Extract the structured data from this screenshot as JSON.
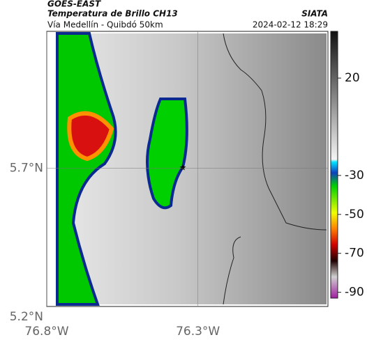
{
  "header": {
    "source": "GOES-EAST",
    "product": "Temperatura de Brillo CH13",
    "route": "Vía Medellín - Quibdó 50km",
    "agency": "SIATA",
    "datetime": "2024-02-12 18:29"
  },
  "map": {
    "xlim": [
      -76.8,
      -75.87
    ],
    "ylim": [
      5.2,
      6.16
    ],
    "xticks": [
      {
        "value": -76.8,
        "label": "76.8°W"
      },
      {
        "value": -76.3,
        "label": "76.3°W"
      }
    ],
    "yticks": [
      {
        "value": 5.7,
        "label": "5.7°N"
      },
      {
        "value": 5.2,
        "label": "5.2°N"
      }
    ],
    "grid": true
  },
  "colorbar": {
    "clim": [
      -93,
      44
    ],
    "ticks": [
      20,
      -30,
      -50,
      -70,
      -90
    ]
  }
}
